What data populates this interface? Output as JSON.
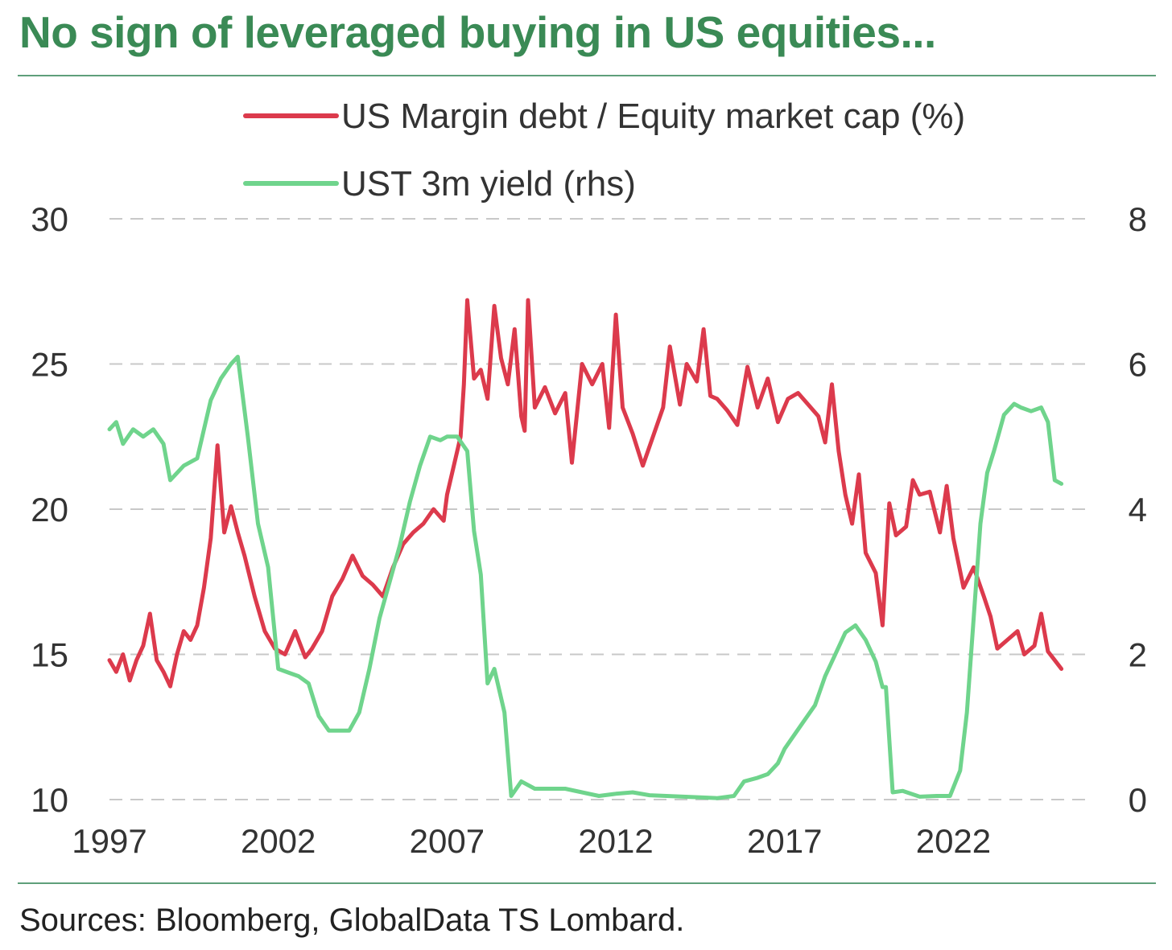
{
  "title": "No sign of leveraged buying in US equities...",
  "source": "Sources: Bloomberg, GlobalData TS Lombard.",
  "colors": {
    "title": "#3a8a55",
    "rule": "#5f9f7a",
    "margin": "#dc3a4c",
    "yield": "#6fd48c",
    "grid": "#c8c8c8",
    "text": "#333333"
  },
  "chart_data": {
    "type": "line",
    "x_ticks": [
      1997,
      2002,
      2007,
      2012,
      2017,
      2022
    ],
    "xlim": [
      1997,
      2025.9
    ],
    "y_left": {
      "ticks": [
        10,
        15,
        20,
        25,
        30
      ],
      "lim": [
        10,
        30
      ]
    },
    "y_right": {
      "ticks": [
        0,
        2,
        4,
        6,
        8
      ],
      "lim": [
        0,
        8
      ]
    },
    "grid": "horizontal dashed",
    "legend_position": "top",
    "series": [
      {
        "name": "US Margin debt / Equity market cap (%)",
        "axis": "left",
        "color": "#dc3a4c",
        "points": [
          [
            1997.0,
            14.8
          ],
          [
            1997.2,
            14.4
          ],
          [
            1997.4,
            15.0
          ],
          [
            1997.6,
            14.1
          ],
          [
            1997.8,
            14.8
          ],
          [
            1998.0,
            15.3
          ],
          [
            1998.2,
            16.4
          ],
          [
            1998.4,
            14.8
          ],
          [
            1998.6,
            14.4
          ],
          [
            1998.8,
            13.9
          ],
          [
            1999.0,
            15.0
          ],
          [
            1999.2,
            15.8
          ],
          [
            1999.4,
            15.5
          ],
          [
            1999.6,
            16.0
          ],
          [
            1999.8,
            17.3
          ],
          [
            2000.0,
            19.0
          ],
          [
            2000.2,
            22.2
          ],
          [
            2000.4,
            19.2
          ],
          [
            2000.6,
            20.1
          ],
          [
            2000.8,
            19.2
          ],
          [
            2001.0,
            18.4
          ],
          [
            2001.3,
            17.0
          ],
          [
            2001.6,
            15.8
          ],
          [
            2001.9,
            15.2
          ],
          [
            2002.2,
            15.0
          ],
          [
            2002.5,
            15.8
          ],
          [
            2002.8,
            14.9
          ],
          [
            2003.0,
            15.2
          ],
          [
            2003.3,
            15.8
          ],
          [
            2003.6,
            17.0
          ],
          [
            2003.9,
            17.6
          ],
          [
            2004.2,
            18.4
          ],
          [
            2004.5,
            17.7
          ],
          [
            2004.8,
            17.4
          ],
          [
            2005.1,
            17.0
          ],
          [
            2005.4,
            18.0
          ],
          [
            2005.7,
            18.8
          ],
          [
            2006.0,
            19.2
          ],
          [
            2006.3,
            19.5
          ],
          [
            2006.6,
            20.0
          ],
          [
            2006.9,
            19.6
          ],
          [
            2007.0,
            20.5
          ],
          [
            2007.2,
            21.5
          ],
          [
            2007.4,
            22.5
          ],
          [
            2007.5,
            24.3
          ],
          [
            2007.6,
            27.2
          ],
          [
            2007.8,
            24.5
          ],
          [
            2008.0,
            24.8
          ],
          [
            2008.2,
            23.8
          ],
          [
            2008.4,
            27.0
          ],
          [
            2008.6,
            25.2
          ],
          [
            2008.8,
            24.3
          ],
          [
            2009.0,
            26.2
          ],
          [
            2009.2,
            23.2
          ],
          [
            2009.3,
            22.7
          ],
          [
            2009.4,
            27.2
          ],
          [
            2009.6,
            23.5
          ],
          [
            2009.9,
            24.2
          ],
          [
            2010.2,
            23.3
          ],
          [
            2010.5,
            24.0
          ],
          [
            2010.7,
            21.6
          ],
          [
            2011.0,
            25.0
          ],
          [
            2011.3,
            24.3
          ],
          [
            2011.6,
            25.0
          ],
          [
            2011.8,
            22.8
          ],
          [
            2012.0,
            26.7
          ],
          [
            2012.2,
            23.5
          ],
          [
            2012.5,
            22.6
          ],
          [
            2012.8,
            21.5
          ],
          [
            2013.1,
            22.5
          ],
          [
            2013.4,
            23.5
          ],
          [
            2013.6,
            25.6
          ],
          [
            2013.9,
            23.6
          ],
          [
            2014.1,
            25.0
          ],
          [
            2014.4,
            24.4
          ],
          [
            2014.6,
            26.2
          ],
          [
            2014.8,
            23.9
          ],
          [
            2015.0,
            23.8
          ],
          [
            2015.3,
            23.4
          ],
          [
            2015.6,
            22.9
          ],
          [
            2015.9,
            24.9
          ],
          [
            2016.2,
            23.5
          ],
          [
            2016.5,
            24.5
          ],
          [
            2016.8,
            23.0
          ],
          [
            2017.1,
            23.8
          ],
          [
            2017.4,
            24.0
          ],
          [
            2017.7,
            23.6
          ],
          [
            2018.0,
            23.2
          ],
          [
            2018.2,
            22.3
          ],
          [
            2018.4,
            24.3
          ],
          [
            2018.6,
            22.0
          ],
          [
            2018.8,
            20.5
          ],
          [
            2019.0,
            19.5
          ],
          [
            2019.2,
            21.2
          ],
          [
            2019.4,
            18.5
          ],
          [
            2019.7,
            17.8
          ],
          [
            2019.9,
            16.0
          ],
          [
            2020.1,
            20.2
          ],
          [
            2020.3,
            19.1
          ],
          [
            2020.6,
            19.4
          ],
          [
            2020.8,
            21.0
          ],
          [
            2021.0,
            20.5
          ],
          [
            2021.3,
            20.6
          ],
          [
            2021.6,
            19.2
          ],
          [
            2021.8,
            20.8
          ],
          [
            2022.0,
            19.0
          ],
          [
            2022.3,
            17.3
          ],
          [
            2022.6,
            18.0
          ],
          [
            2022.9,
            17.0
          ],
          [
            2023.1,
            16.3
          ],
          [
            2023.3,
            15.2
          ],
          [
            2023.6,
            15.5
          ],
          [
            2023.9,
            15.8
          ],
          [
            2024.1,
            15.0
          ],
          [
            2024.4,
            15.3
          ],
          [
            2024.6,
            16.4
          ],
          [
            2024.8,
            15.1
          ],
          [
            2025.0,
            14.8
          ],
          [
            2025.2,
            14.5
          ]
        ]
      },
      {
        "name": "UST 3m yield (rhs)",
        "axis": "right",
        "color": "#6fd48c",
        "points": [
          [
            1997.0,
            5.1
          ],
          [
            1997.2,
            5.2
          ],
          [
            1997.4,
            4.9
          ],
          [
            1997.7,
            5.1
          ],
          [
            1998.0,
            5.0
          ],
          [
            1998.3,
            5.1
          ],
          [
            1998.6,
            4.9
          ],
          [
            1998.8,
            4.4
          ],
          [
            1999.2,
            4.6
          ],
          [
            1999.6,
            4.7
          ],
          [
            2000.0,
            5.5
          ],
          [
            2000.3,
            5.8
          ],
          [
            2000.6,
            6.0
          ],
          [
            2000.8,
            6.1
          ],
          [
            2001.1,
            5.0
          ],
          [
            2001.4,
            3.8
          ],
          [
            2001.7,
            3.2
          ],
          [
            2002.0,
            1.8
          ],
          [
            2002.3,
            1.75
          ],
          [
            2002.6,
            1.7
          ],
          [
            2002.9,
            1.6
          ],
          [
            2003.2,
            1.15
          ],
          [
            2003.5,
            0.95
          ],
          [
            2003.8,
            0.95
          ],
          [
            2004.1,
            0.95
          ],
          [
            2004.4,
            1.2
          ],
          [
            2004.7,
            1.8
          ],
          [
            2005.0,
            2.5
          ],
          [
            2005.3,
            3.0
          ],
          [
            2005.6,
            3.5
          ],
          [
            2005.9,
            4.1
          ],
          [
            2006.2,
            4.6
          ],
          [
            2006.5,
            5.0
          ],
          [
            2006.8,
            4.95
          ],
          [
            2007.0,
            5.0
          ],
          [
            2007.3,
            5.0
          ],
          [
            2007.6,
            4.8
          ],
          [
            2007.8,
            3.7
          ],
          [
            2008.0,
            3.1
          ],
          [
            2008.2,
            1.6
          ],
          [
            2008.4,
            1.8
          ],
          [
            2008.7,
            1.2
          ],
          [
            2008.9,
            0.05
          ],
          [
            2009.2,
            0.25
          ],
          [
            2009.6,
            0.15
          ],
          [
            2010.0,
            0.15
          ],
          [
            2010.5,
            0.15
          ],
          [
            2011.0,
            0.1
          ],
          [
            2011.5,
            0.05
          ],
          [
            2012.0,
            0.08
          ],
          [
            2012.5,
            0.1
          ],
          [
            2013.0,
            0.06
          ],
          [
            2013.5,
            0.05
          ],
          [
            2014.0,
            0.04
          ],
          [
            2014.5,
            0.03
          ],
          [
            2015.0,
            0.02
          ],
          [
            2015.5,
            0.05
          ],
          [
            2015.8,
            0.25
          ],
          [
            2016.2,
            0.3
          ],
          [
            2016.5,
            0.35
          ],
          [
            2016.8,
            0.5
          ],
          [
            2017.0,
            0.7
          ],
          [
            2017.3,
            0.9
          ],
          [
            2017.6,
            1.1
          ],
          [
            2017.9,
            1.3
          ],
          [
            2018.2,
            1.7
          ],
          [
            2018.5,
            2.0
          ],
          [
            2018.8,
            2.3
          ],
          [
            2019.1,
            2.4
          ],
          [
            2019.4,
            2.2
          ],
          [
            2019.7,
            1.9
          ],
          [
            2019.9,
            1.55
          ],
          [
            2020.0,
            1.55
          ],
          [
            2020.2,
            0.1
          ],
          [
            2020.5,
            0.12
          ],
          [
            2021.0,
            0.04
          ],
          [
            2021.5,
            0.05
          ],
          [
            2021.9,
            0.05
          ],
          [
            2022.2,
            0.4
          ],
          [
            2022.4,
            1.2
          ],
          [
            2022.6,
            2.5
          ],
          [
            2022.8,
            3.8
          ],
          [
            2023.0,
            4.5
          ],
          [
            2023.2,
            4.8
          ],
          [
            2023.5,
            5.3
          ],
          [
            2023.8,
            5.45
          ],
          [
            2024.0,
            5.4
          ],
          [
            2024.3,
            5.35
          ],
          [
            2024.6,
            5.4
          ],
          [
            2024.8,
            5.2
          ],
          [
            2025.0,
            4.4
          ],
          [
            2025.2,
            4.35
          ]
        ]
      }
    ]
  }
}
